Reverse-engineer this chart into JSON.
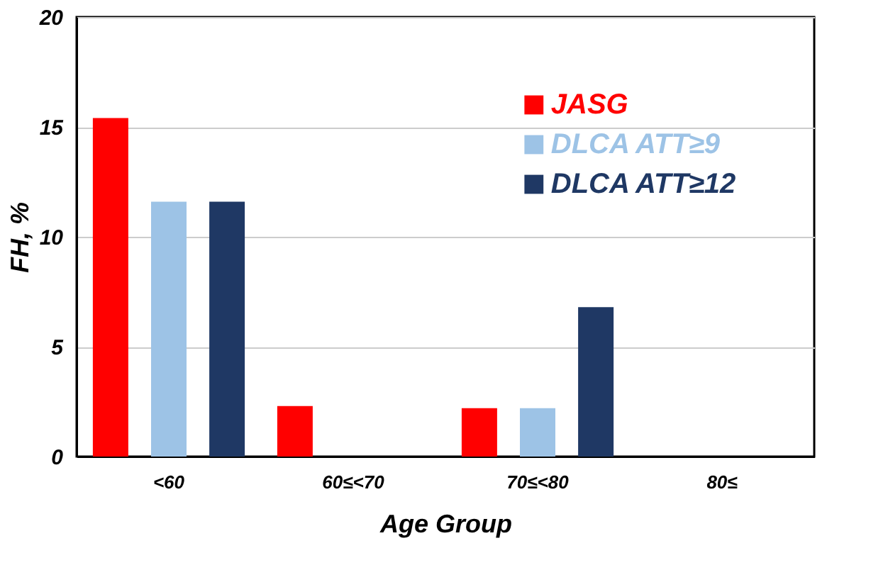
{
  "chart_data": {
    "type": "bar",
    "xlabel": "Age Group",
    "ylabel": "FH, %",
    "categories": [
      "<60",
      "60≤<70",
      "70≤<80",
      "80≤"
    ],
    "series": [
      {
        "name": "JASG",
        "color": "#ff0000",
        "values": [
          15.4,
          2.3,
          2.2,
          0
        ]
      },
      {
        "name": "DLCA ATT≥9",
        "color": "#9dc3e6",
        "values": [
          11.6,
          0,
          2.2,
          0
        ]
      },
      {
        "name": "DLCA ATT≥12",
        "color": "#1f3864",
        "values": [
          11.6,
          0,
          6.8,
          0
        ]
      }
    ],
    "ylim": [
      0,
      20
    ],
    "yticks": [
      0,
      5,
      10,
      15,
      20
    ],
    "grid": "y",
    "legend": "top right"
  }
}
